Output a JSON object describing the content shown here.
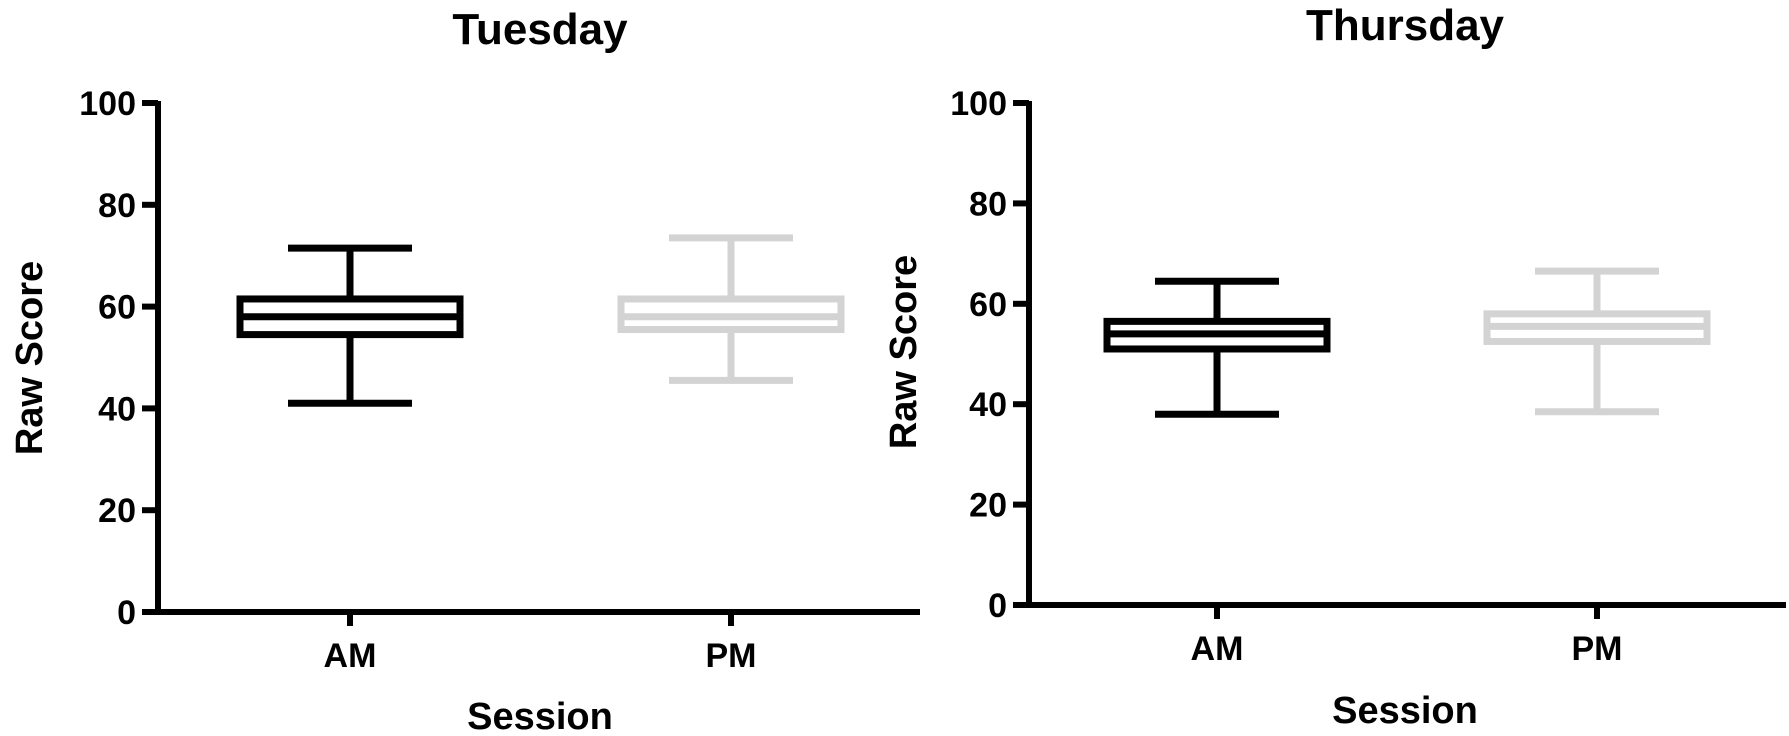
{
  "chart_data": [
    {
      "type": "boxplot",
      "title": "Tuesday",
      "xlabel": "Session",
      "ylabel": "Raw Score",
      "ylim": [
        0,
        100
      ],
      "yticks": [
        "0",
        "20",
        "40",
        "60",
        "80",
        "100"
      ],
      "categories": [
        "AM",
        "PM"
      ],
      "boxes": [
        {
          "category": "AM",
          "min": 41,
          "q1": 54.5,
          "median": 58,
          "q3": 61.5,
          "max": 71.5,
          "color": "#000000"
        },
        {
          "category": "PM",
          "min": 45.5,
          "q1": 55.5,
          "median": 58,
          "q3": 61.5,
          "max": 73.5,
          "color": "#d3d3d3"
        }
      ],
      "grid": false,
      "legend": "none"
    },
    {
      "type": "boxplot",
      "title": "Thursday",
      "xlabel": "Session",
      "ylabel": "Raw Score",
      "ylim": [
        0,
        100
      ],
      "yticks": [
        "0",
        "20",
        "40",
        "60",
        "80",
        "100"
      ],
      "categories": [
        "AM",
        "PM"
      ],
      "boxes": [
        {
          "category": "AM",
          "min": 38,
          "q1": 51,
          "median": 54,
          "q3": 56.5,
          "max": 64.5,
          "color": "#000000"
        },
        {
          "category": "PM",
          "min": 38.5,
          "q1": 52.5,
          "median": 55.5,
          "q3": 58,
          "max": 66.5,
          "color": "#d3d3d3"
        }
      ],
      "grid": false,
      "legend": "none"
    }
  ]
}
